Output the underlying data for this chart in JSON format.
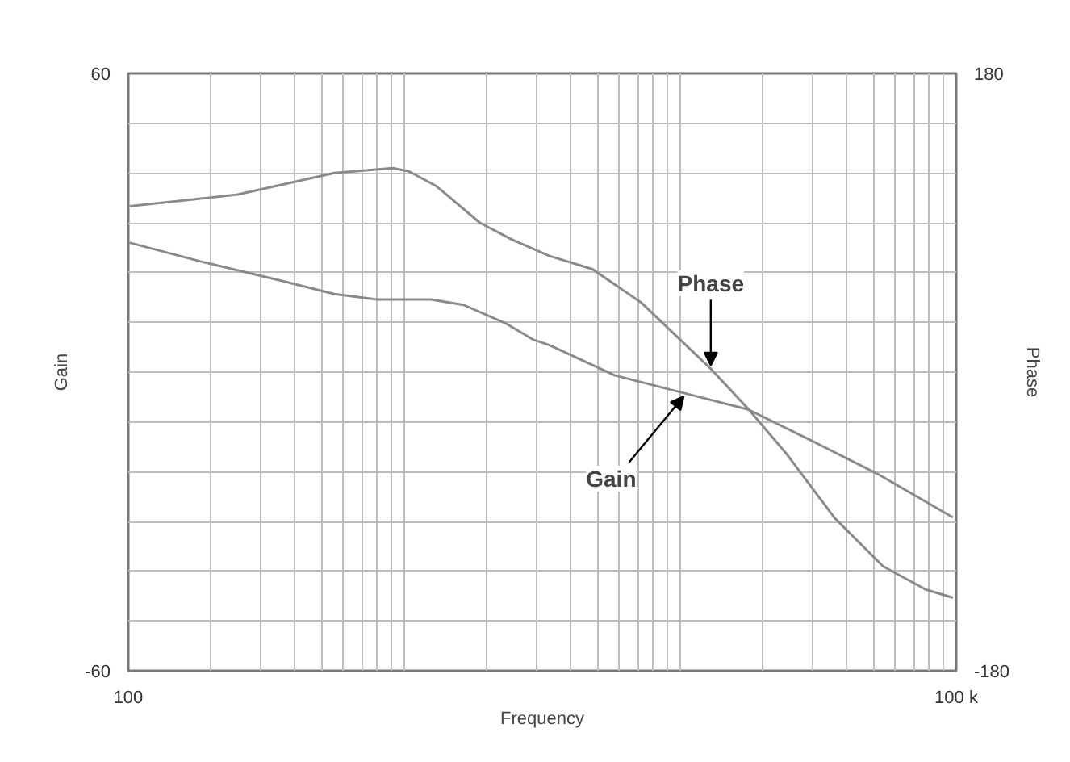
{
  "chart_data": {
    "type": "line",
    "xlabel": "Frequency",
    "ylabel": "Gain",
    "y2label": "Phase",
    "log": "x",
    "xlim": [
      100,
      100000
    ],
    "xticks": [
      {
        "value": 100,
        "label": "100"
      },
      {
        "value": 200,
        "label": null
      },
      {
        "value": 300,
        "label": null
      },
      {
        "value": 400,
        "label": null
      },
      {
        "value": 500,
        "label": null
      },
      {
        "value": 600,
        "label": null
      },
      {
        "value": 700,
        "label": null
      },
      {
        "value": 800,
        "label": null
      },
      {
        "value": 900,
        "label": null
      },
      {
        "value": 1000,
        "label": null
      },
      {
        "value": 2000,
        "label": null
      },
      {
        "value": 3000,
        "label": null
      },
      {
        "value": 4000,
        "label": null
      },
      {
        "value": 5000,
        "label": null
      },
      {
        "value": 6000,
        "label": null
      },
      {
        "value": 7000,
        "label": null
      },
      {
        "value": 8000,
        "label": null
      },
      {
        "value": 9000,
        "label": null
      },
      {
        "value": 10000,
        "label": null
      },
      {
        "value": 20000,
        "label": null
      },
      {
        "value": 30000,
        "label": null
      },
      {
        "value": 40000,
        "label": null
      },
      {
        "value": 50000,
        "label": null
      },
      {
        "value": 60000,
        "label": null
      },
      {
        "value": 70000,
        "label": null
      },
      {
        "value": 80000,
        "label": null
      },
      {
        "value": 90000,
        "label": null
      },
      {
        "value": 100000,
        "label": "100 k"
      }
    ],
    "ylim": [
      -60,
      60
    ],
    "yticks": [
      -60,
      {
        "value": -50,
        "label": null
      },
      {
        "value": -40,
        "label": null
      },
      {
        "value": -30,
        "label": null
      },
      {
        "value": -20,
        "label": null
      },
      {
        "value": -10,
        "label": null
      },
      {
        "value": 0,
        "label": null
      },
      {
        "value": 10,
        "label": null
      },
      {
        "value": 20,
        "label": null
      },
      {
        "value": 30,
        "label": null
      },
      {
        "value": 40,
        "label": null
      },
      {
        "value": 50,
        "label": null
      },
      60
    ],
    "y2lim": [
      -180,
      180
    ],
    "y2ticks": [
      -180,
      180
    ],
    "grid": true,
    "marker": "none",
    "line_style": "solid",
    "series": [
      {
        "color": "#8a8a8a",
        "axis": "y2",
        "x": [
          101,
          249,
          558,
          910,
          1040,
          1310,
          1880,
          2450,
          3360,
          4810,
          7210,
          12900,
          17600,
          24200,
          36300,
          54300,
          77400,
          97300
        ],
        "values": [
          100,
          107,
          120,
          123,
          121,
          112,
          90,
          80,
          70,
          62,
          42,
          2,
          -22,
          -49,
          -88,
          -117,
          -131,
          -136
        ]
      },
      {
        "color": "#8a8a8a",
        "axis": "y",
        "x": [
          101,
          190,
          356,
          558,
          796,
          1250,
          1640,
          2350,
          2940,
          3360,
          5760,
          10300,
          17600,
          30200,
          51700,
          97300
        ],
        "values": [
          26,
          22,
          18.4,
          15.7,
          14.6,
          14.6,
          13.5,
          9.7,
          6.5,
          5.4,
          -0.6,
          -4.2,
          -7.5,
          -13.9,
          -20.4,
          -29.2
        ]
      }
    ],
    "annotations": [
      {
        "text": "Phase",
        "x": 12900,
        "y": 0.7
      },
      {
        "text": "Gain",
        "x": 10300,
        "y": -4.2
      }
    ]
  }
}
